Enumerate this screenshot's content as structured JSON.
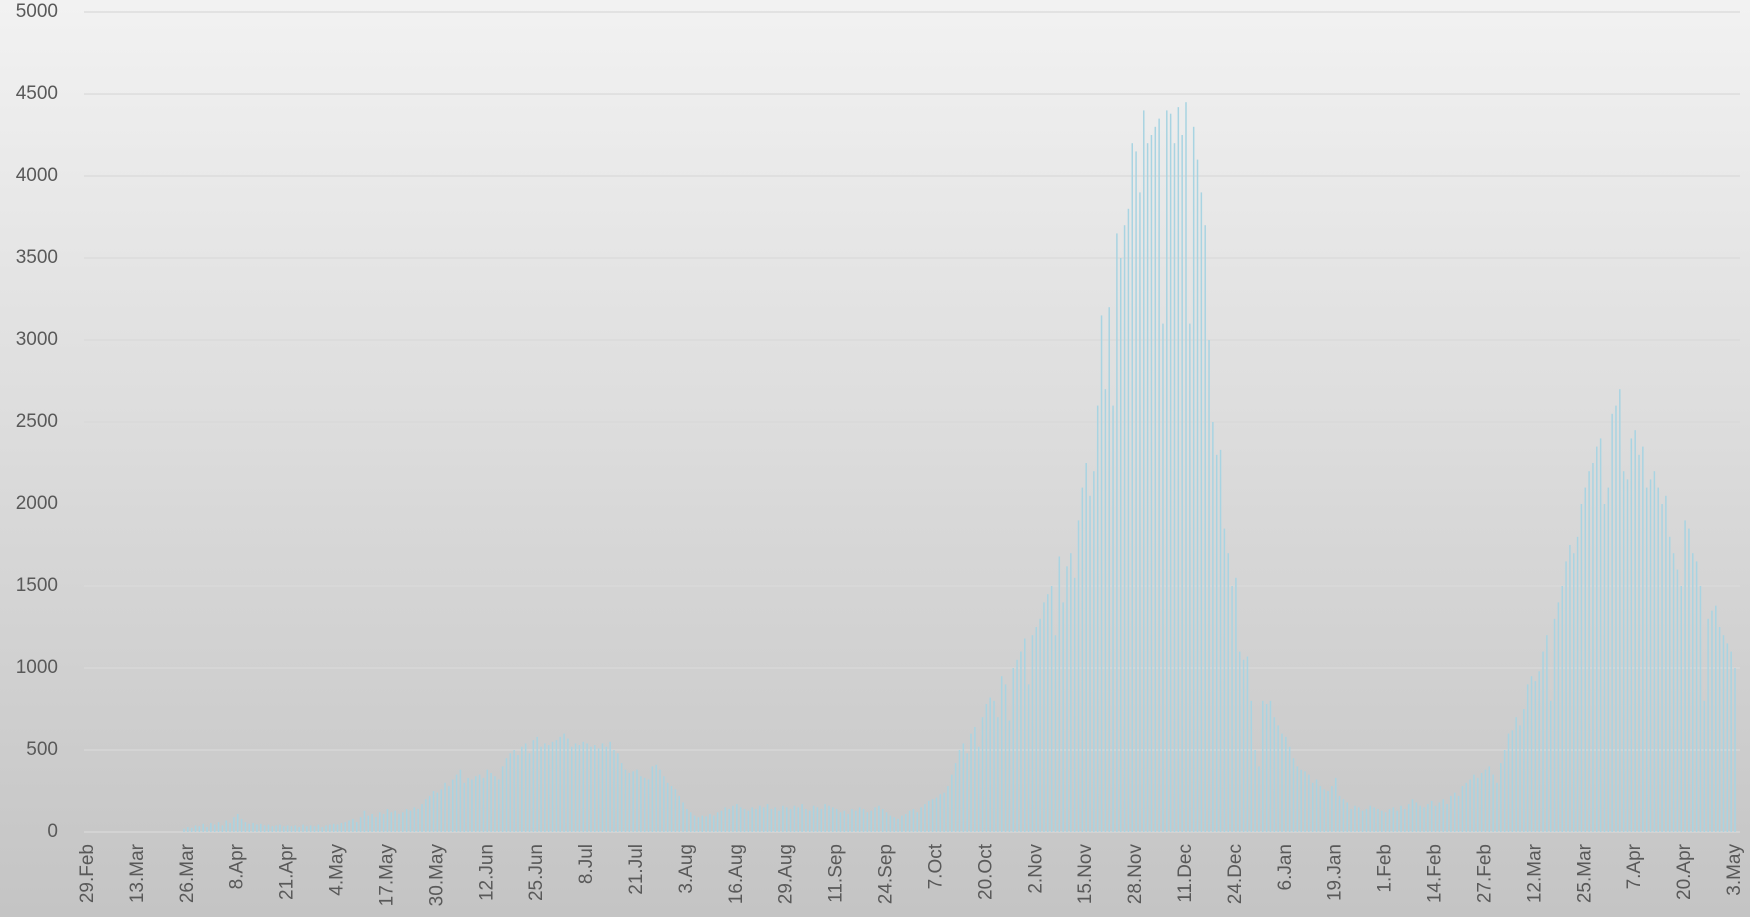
{
  "chart_data": {
    "type": "bar",
    "color": "#a8d4e2",
    "grid": true,
    "ylim": [
      0,
      5000
    ],
    "yticks": [
      0,
      500,
      1000,
      1500,
      2000,
      2500,
      3000,
      3500,
      4000,
      4500,
      5000
    ],
    "categories": [
      "29.Feb",
      null,
      null,
      null,
      null,
      null,
      null,
      null,
      null,
      null,
      null,
      null,
      null,
      "13.Mar",
      null,
      null,
      null,
      null,
      null,
      null,
      null,
      null,
      null,
      null,
      null,
      null,
      "26.Mar",
      null,
      null,
      null,
      null,
      null,
      null,
      null,
      null,
      null,
      null,
      null,
      null,
      "8.Apr",
      null,
      null,
      null,
      null,
      null,
      null,
      null,
      null,
      null,
      null,
      null,
      null,
      "21.Apr",
      null,
      null,
      null,
      null,
      null,
      null,
      null,
      null,
      null,
      null,
      null,
      null,
      "4.May",
      null,
      null,
      null,
      null,
      null,
      null,
      null,
      null,
      null,
      null,
      null,
      null,
      "17.May",
      null,
      null,
      null,
      null,
      null,
      null,
      null,
      null,
      null,
      null,
      null,
      null,
      "30.May",
      null,
      null,
      null,
      null,
      null,
      null,
      null,
      null,
      null,
      null,
      null,
      null,
      "12.Jun",
      null,
      null,
      null,
      null,
      null,
      null,
      null,
      null,
      null,
      null,
      null,
      null,
      "25.Jun",
      null,
      null,
      null,
      null,
      null,
      null,
      null,
      null,
      null,
      null,
      null,
      null,
      "8.Jul",
      null,
      null,
      null,
      null,
      null,
      null,
      null,
      null,
      null,
      null,
      null,
      null,
      "21.Jul",
      null,
      null,
      null,
      null,
      null,
      null,
      null,
      null,
      null,
      null,
      null,
      null,
      "3.Aug",
      null,
      null,
      null,
      null,
      null,
      null,
      null,
      null,
      null,
      null,
      null,
      null,
      "16.Aug",
      null,
      null,
      null,
      null,
      null,
      null,
      null,
      null,
      null,
      null,
      null,
      null,
      "29.Aug",
      null,
      null,
      null,
      null,
      null,
      null,
      null,
      null,
      null,
      null,
      null,
      null,
      "11.Sep",
      null,
      null,
      null,
      null,
      null,
      null,
      null,
      null,
      null,
      null,
      null,
      null,
      "24.Sep",
      null,
      null,
      null,
      null,
      null,
      null,
      null,
      null,
      null,
      null,
      null,
      null,
      "7.Oct",
      null,
      null,
      null,
      null,
      null,
      null,
      null,
      null,
      null,
      null,
      null,
      null,
      "20.Oct",
      null,
      null,
      null,
      null,
      null,
      null,
      null,
      null,
      null,
      null,
      null,
      null,
      "2.Nov",
      null,
      null,
      null,
      null,
      null,
      null,
      null,
      null,
      null,
      null,
      null,
      null,
      "15.Nov",
      null,
      null,
      null,
      null,
      null,
      null,
      null,
      null,
      null,
      null,
      null,
      null,
      "28.Nov",
      null,
      null,
      null,
      null,
      null,
      null,
      null,
      null,
      null,
      null,
      null,
      null,
      "11.Dec",
      null,
      null,
      null,
      null,
      null,
      null,
      null,
      null,
      null,
      null,
      null,
      null,
      "24.Dec",
      null,
      null,
      null,
      null,
      null,
      null,
      null,
      null,
      null,
      null,
      null,
      null,
      "6.Jan",
      null,
      null,
      null,
      null,
      null,
      null,
      null,
      null,
      null,
      null,
      null,
      null,
      "19.Jan",
      null,
      null,
      null,
      null,
      null,
      null,
      null,
      null,
      null,
      null,
      null,
      null,
      "1.Feb",
      null,
      null,
      null,
      null,
      null,
      null,
      null,
      null,
      null,
      null,
      null,
      null,
      "14.Feb",
      null,
      null,
      null,
      null,
      null,
      null,
      null,
      null,
      null,
      null,
      null,
      null,
      "27.Feb",
      null,
      null,
      null,
      null,
      null,
      null,
      null,
      null,
      null,
      null,
      null,
      null,
      "12.Mar",
      null,
      null,
      null,
      null,
      null,
      null,
      null,
      null,
      null,
      null,
      null,
      null,
      "25.Mar",
      null,
      null,
      null,
      null,
      null,
      null,
      null,
      null,
      null,
      null,
      null,
      null,
      "7.Apr",
      null,
      null,
      null,
      null,
      null,
      null,
      null,
      null,
      null,
      null,
      null,
      null,
      "20.Apr",
      null,
      null,
      null,
      null,
      null,
      null,
      null,
      null,
      null,
      null,
      null,
      null,
      "3.May"
    ],
    "values": [
      0,
      0,
      0,
      0,
      0,
      0,
      0,
      0,
      0,
      0,
      0,
      0,
      0,
      0,
      0,
      0,
      0,
      0,
      0,
      0,
      0,
      0,
      0,
      0,
      0,
      20,
      30,
      25,
      40,
      35,
      50,
      30,
      55,
      45,
      60,
      40,
      70,
      55,
      90,
      110,
      80,
      60,
      50,
      55,
      45,
      50,
      40,
      45,
      35,
      40,
      45,
      35,
      40,
      35,
      40,
      30,
      45,
      35,
      40,
      35,
      45,
      30,
      40,
      45,
      50,
      45,
      55,
      60,
      70,
      80,
      60,
      90,
      130,
      100,
      110,
      90,
      120,
      110,
      140,
      120,
      130,
      110,
      120,
      140,
      130,
      150,
      140,
      170,
      200,
      220,
      250,
      240,
      260,
      300,
      280,
      320,
      350,
      380,
      300,
      330,
      320,
      340,
      350,
      330,
      380,
      360,
      340,
      320,
      400,
      450,
      480,
      500,
      470,
      520,
      540,
      480,
      560,
      580,
      520,
      540,
      530,
      550,
      560,
      580,
      600,
      570,
      520,
      540,
      530,
      550,
      540,
      520,
      530,
      510,
      540,
      520,
      550,
      500,
      480,
      420,
      380,
      360,
      370,
      380,
      340,
      330,
      320,
      400,
      410,
      380,
      340,
      300,
      280,
      260,
      220,
      180,
      140,
      120,
      100,
      90,
      100,
      95,
      110,
      100,
      120,
      130,
      150,
      140,
      160,
      170,
      150,
      140,
      130,
      150,
      140,
      160,
      150,
      170,
      140,
      150,
      130,
      160,
      150,
      140,
      160,
      150,
      170,
      140,
      130,
      160,
      150,
      140,
      170,
      160,
      150,
      140,
      120,
      130,
      110,
      140,
      130,
      150,
      140,
      120,
      130,
      150,
      160,
      140,
      120,
      100,
      90,
      80,
      100,
      110,
      130,
      140,
      120,
      150,
      170,
      190,
      200,
      210,
      230,
      240,
      280,
      350,
      420,
      500,
      540,
      480,
      600,
      640,
      520,
      700,
      780,
      820,
      800,
      700,
      950,
      900,
      680,
      1000,
      1050,
      1100,
      1180,
      900,
      1200,
      1250,
      1300,
      1400,
      1450,
      1500,
      1200,
      1680,
      1400,
      1620,
      1700,
      1550,
      1900,
      2100,
      2250,
      2050,
      2200,
      2600,
      3150,
      2700,
      3200,
      2600,
      3650,
      3500,
      3700,
      3800,
      4200,
      4150,
      3900,
      4400,
      4200,
      4250,
      4300,
      4350,
      3100,
      4400,
      4380,
      4200,
      4420,
      4250,
      4450,
      3100,
      4300,
      4100,
      3900,
      3700,
      3000,
      2500,
      2300,
      2330,
      1850,
      1700,
      1500,
      1550,
      1100,
      1050,
      1070,
      800,
      500,
      400,
      800,
      780,
      800,
      700,
      650,
      600,
      580,
      520,
      450,
      400,
      380,
      370,
      350,
      300,
      320,
      280,
      260,
      250,
      280,
      330,
      220,
      200,
      180,
      140,
      160,
      150,
      130,
      140,
      160,
      150,
      140,
      130,
      120,
      140,
      150,
      130,
      160,
      140,
      170,
      200,
      180,
      160,
      150,
      170,
      190,
      160,
      180,
      200,
      170,
      220,
      240,
      220,
      280,
      300,
      320,
      350,
      330,
      360,
      380,
      400,
      350,
      300,
      420,
      500,
      600,
      620,
      700,
      650,
      750,
      900,
      950,
      920,
      980,
      1100,
      1200,
      800,
      1300,
      1400,
      1500,
      1650,
      1750,
      1700,
      1800,
      2000,
      2100,
      2200,
      2250,
      2350,
      2400,
      2000,
      2100,
      2550,
      2600,
      2700,
      2200,
      2150,
      2400,
      2450,
      2300,
      2350,
      2100,
      2150,
      2200,
      2100,
      2000,
      2050,
      1800,
      1700,
      1600,
      1500,
      1900,
      1850,
      1700,
      1650,
      1500,
      800,
      1300,
      1350,
      1380,
      1250,
      1200,
      1150,
      1100,
      1000
    ]
  }
}
